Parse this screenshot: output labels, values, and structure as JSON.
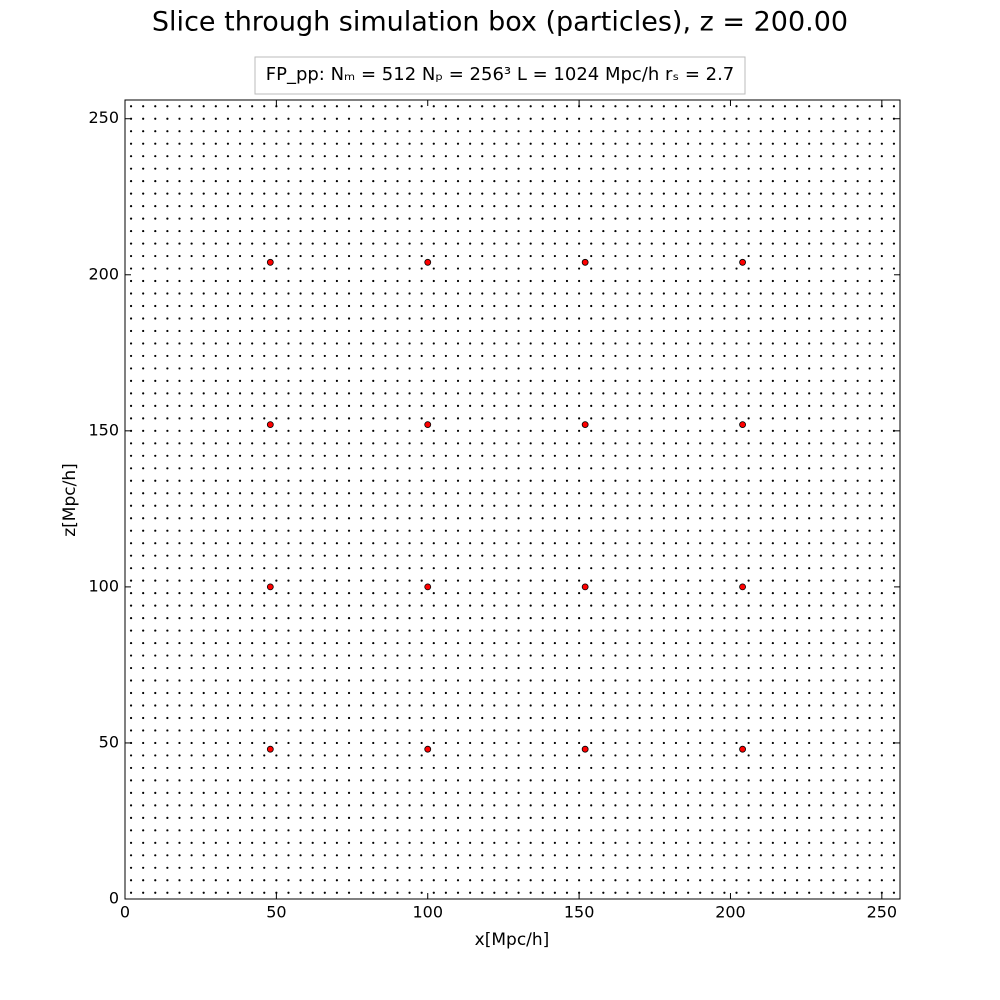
{
  "chart_data": {
    "type": "scatter",
    "title": "Slice through simulation box (particles), z = 200.00",
    "annotation": "FP_pp:  Nₘ = 512   Nₚ = 256³   L = 1024 Mpc/h   rₛ = 2.7",
    "xlabel": "x[Mpc/h]",
    "ylabel": "z[Mpc/h]",
    "xlim": [
      0,
      256
    ],
    "ylim": [
      0,
      256
    ],
    "xticks": [
      0,
      50,
      100,
      150,
      200,
      250
    ],
    "yticks": [
      0,
      50,
      100,
      150,
      200,
      250
    ],
    "series": [
      {
        "color": "#000000",
        "marker": "point",
        "x_grid": [
          2,
          6,
          10,
          14,
          18,
          22,
          26,
          30,
          34,
          38,
          42,
          46,
          50,
          54,
          58,
          62,
          66,
          70,
          74,
          78,
          82,
          86,
          90,
          94,
          98,
          102,
          106,
          110,
          114,
          118,
          122,
          126,
          130,
          134,
          138,
          142,
          146,
          150,
          154,
          158,
          162,
          166,
          170,
          174,
          178,
          182,
          186,
          190,
          194,
          198,
          202,
          206,
          210,
          214,
          218,
          222,
          226,
          230,
          234,
          238,
          242,
          246,
          250,
          254
        ],
        "y_grid": [
          2,
          6,
          10,
          14,
          18,
          22,
          26,
          30,
          34,
          38,
          42,
          46,
          50,
          54,
          58,
          62,
          66,
          70,
          74,
          78,
          82,
          86,
          90,
          94,
          98,
          102,
          106,
          110,
          114,
          118,
          122,
          126,
          130,
          134,
          138,
          142,
          146,
          150,
          154,
          158,
          162,
          166,
          170,
          174,
          178,
          182,
          186,
          190,
          194,
          198,
          202,
          206,
          210,
          214,
          218,
          222,
          226,
          230,
          234,
          238,
          242,
          246,
          250,
          254
        ]
      },
      {
        "color": "#ff0000",
        "marker": "circle",
        "x_grid": [
          48,
          100,
          152,
          204
        ],
        "y_grid": [
          48,
          100,
          152,
          204
        ]
      }
    ]
  }
}
